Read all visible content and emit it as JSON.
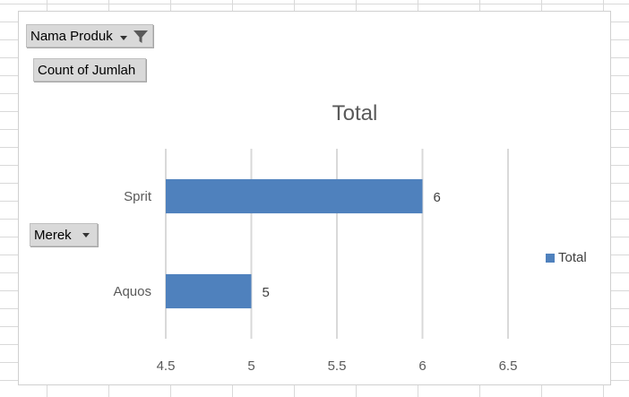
{
  "buttons": {
    "nama_produk": "Nama Produk",
    "count_of_jumlah": "Count of Jumlah",
    "merek": "Merek"
  },
  "icons": {
    "filter": "filter-icon",
    "dropdown": "chevron-down-icon"
  },
  "chart_data": {
    "type": "bar",
    "orientation": "horizontal",
    "title": "Total",
    "categories": [
      "Sprit",
      "Aquos"
    ],
    "series": [
      {
        "name": "Total",
        "values": [
          6,
          5
        ],
        "color": "#4f81bd"
      }
    ],
    "xlim": [
      4.5,
      6.5
    ],
    "x_ticks": [
      "4.5",
      "5",
      "5.5",
      "6",
      "6.5"
    ],
    "tick_values": [
      4.5,
      5,
      5.5,
      6,
      6.5
    ],
    "data_labels": [
      "6",
      "5"
    ],
    "grid": "vertical",
    "legend": "right"
  }
}
